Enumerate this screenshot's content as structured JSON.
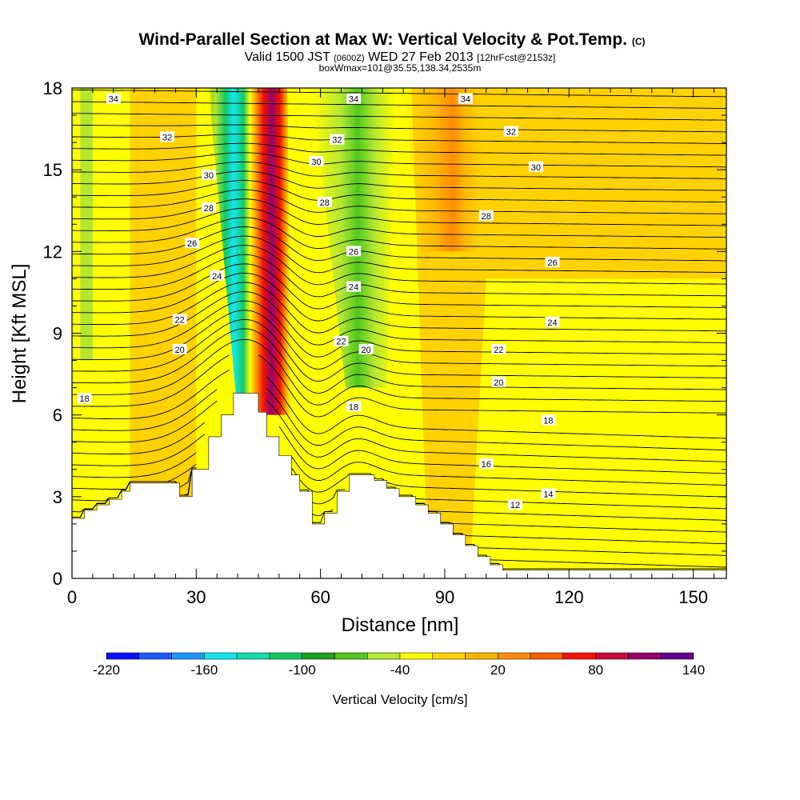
{
  "chart_data": {
    "type": "heatmap",
    "title": "Wind-Parallel Section at Max W: Vertical Velocity & Pot.Temp.",
    "title_mark": "(C)",
    "subtitle_main": "Valid 1500 JST",
    "subtitle_z": "(0600Z)",
    "subtitle_date": "WED 27 Feb 2013",
    "subtitle_fcst": "[12hrFcst@2153z]",
    "subtitle2": "boxWmax=101@35.55,138.34,2535m",
    "xlabel": "Distance [nm]",
    "ylabel": "Height [Kft MSL]",
    "xlim": [
      0,
      158
    ],
    "ylim": [
      0,
      18
    ],
    "xticks": [
      0,
      30,
      60,
      90,
      120,
      150
    ],
    "xtick_labels": [
      "0",
      "30",
      "60",
      "90",
      "120",
      "150"
    ],
    "yticks": [
      0,
      3,
      6,
      9,
      12,
      15,
      18
    ],
    "ytick_labels": [
      "0",
      "3",
      "6",
      "9",
      "12",
      "15",
      "18"
    ],
    "colorbar": {
      "label": "Vertical Velocity [cm/s]",
      "tick_labels": [
        "-220",
        "-160",
        "-100",
        "-40",
        "20",
        "80",
        "140"
      ],
      "colors": [
        "#0a14ff",
        "#1e5aff",
        "#1e96ff",
        "#14e6f0",
        "#14dcaa",
        "#14c864",
        "#1ea01e",
        "#50c81e",
        "#b4e632",
        "#ffff00",
        "#ffd200",
        "#ffb400",
        "#ff8c00",
        "#ff5a00",
        "#f01400",
        "#c80a3c",
        "#96006e",
        "#64008c"
      ]
    },
    "terrain_kft": [
      [
        0,
        2.2
      ],
      [
        3,
        2.5
      ],
      [
        6,
        2.7
      ],
      [
        9,
        2.9
      ],
      [
        12,
        3.2
      ],
      [
        14,
        3.5
      ],
      [
        18,
        3.5
      ],
      [
        22,
        3.5
      ],
      [
        26,
        3.0
      ],
      [
        29,
        4.0
      ],
      [
        33,
        5.2
      ],
      [
        36,
        6.0
      ],
      [
        39,
        6.8
      ],
      [
        45,
        6.1
      ],
      [
        47,
        5.2
      ],
      [
        50,
        4.5
      ],
      [
        53,
        3.8
      ],
      [
        55,
        3.2
      ],
      [
        58,
        2.0
      ],
      [
        61,
        2.4
      ],
      [
        64,
        3.2
      ],
      [
        67,
        3.8
      ],
      [
        70,
        3.8
      ],
      [
        73,
        3.6
      ],
      [
        76,
        3.3
      ],
      [
        79,
        3.0
      ],
      [
        83,
        2.7
      ],
      [
        86,
        2.4
      ],
      [
        89,
        2.0
      ],
      [
        92,
        1.6
      ],
      [
        95,
        1.2
      ],
      [
        98,
        0.8
      ],
      [
        101,
        0.5
      ],
      [
        104,
        0.3
      ],
      [
        158,
        0.3
      ]
    ],
    "theta_contour_labels": [
      {
        "text": "34",
        "x": 10,
        "y": 17.6
      },
      {
        "text": "32",
        "x": 23,
        "y": 16.2
      },
      {
        "text": "30",
        "x": 33,
        "y": 14.8
      },
      {
        "text": "28",
        "x": 33,
        "y": 13.6
      },
      {
        "text": "26",
        "x": 29,
        "y": 12.3
      },
      {
        "text": "24",
        "x": 35,
        "y": 11.1
      },
      {
        "text": "22",
        "x": 26,
        "y": 9.5
      },
      {
        "text": "20",
        "x": 26,
        "y": 8.4
      },
      {
        "text": "18",
        "x": 3,
        "y": 6.6
      },
      {
        "text": "34",
        "x": 68,
        "y": 17.6
      },
      {
        "text": "32",
        "x": 64,
        "y": 16.1
      },
      {
        "text": "30",
        "x": 59,
        "y": 15.3
      },
      {
        "text": "28",
        "x": 61,
        "y": 13.8
      },
      {
        "text": "26",
        "x": 68,
        "y": 12.0
      },
      {
        "text": "24",
        "x": 68,
        "y": 10.7
      },
      {
        "text": "22",
        "x": 65,
        "y": 8.7
      },
      {
        "text": "20",
        "x": 71,
        "y": 8.4
      },
      {
        "text": "18",
        "x": 68,
        "y": 6.3
      },
      {
        "text": "34",
        "x": 95,
        "y": 17.6
      },
      {
        "text": "32",
        "x": 106,
        "y": 16.4
      },
      {
        "text": "30",
        "x": 112,
        "y": 15.1
      },
      {
        "text": "28",
        "x": 100,
        "y": 13.3
      },
      {
        "text": "26",
        "x": 116,
        "y": 11.6
      },
      {
        "text": "24",
        "x": 116,
        "y": 9.4
      },
      {
        "text": "22",
        "x": 103,
        "y": 8.4
      },
      {
        "text": "20",
        "x": 103,
        "y": 7.2
      },
      {
        "text": "18",
        "x": 115,
        "y": 5.8
      },
      {
        "text": "16",
        "x": 100,
        "y": 4.2
      },
      {
        "text": "14",
        "x": 115,
        "y": 3.1
      },
      {
        "text": "12",
        "x": 107,
        "y": 2.7
      }
    ]
  }
}
